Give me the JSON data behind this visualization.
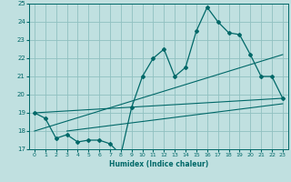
{
  "xlabel": "Humidex (Indice chaleur)",
  "xlim": [
    -0.5,
    23.5
  ],
  "ylim": [
    17,
    25
  ],
  "yticks": [
    17,
    18,
    19,
    20,
    21,
    22,
    23,
    24,
    25
  ],
  "xticks": [
    0,
    1,
    2,
    3,
    4,
    5,
    6,
    7,
    8,
    9,
    10,
    11,
    12,
    13,
    14,
    15,
    16,
    17,
    18,
    19,
    20,
    21,
    22,
    23
  ],
  "bg_color": "#c0e0e0",
  "grid_color": "#90c0c0",
  "line_color": "#006868",
  "main_line": {
    "x": [
      0,
      1,
      2,
      3,
      4,
      5,
      6,
      7,
      8,
      9,
      10,
      11,
      12,
      13,
      14,
      15,
      16,
      17,
      18,
      19,
      20,
      21,
      22,
      23
    ],
    "y": [
      19.0,
      18.7,
      17.6,
      17.8,
      17.4,
      17.5,
      17.5,
      17.3,
      16.7,
      19.3,
      21.0,
      22.0,
      22.5,
      21.0,
      21.5,
      23.5,
      24.8,
      24.0,
      23.4,
      23.3,
      22.2,
      21.0,
      21.0,
      19.8
    ]
  },
  "trend_lines": [
    {
      "x": [
        0,
        23
      ],
      "y": [
        19.0,
        19.8
      ]
    },
    {
      "x": [
        3,
        23
      ],
      "y": [
        18.0,
        19.5
      ]
    },
    {
      "x": [
        0,
        23
      ],
      "y": [
        18.0,
        22.2
      ]
    }
  ]
}
